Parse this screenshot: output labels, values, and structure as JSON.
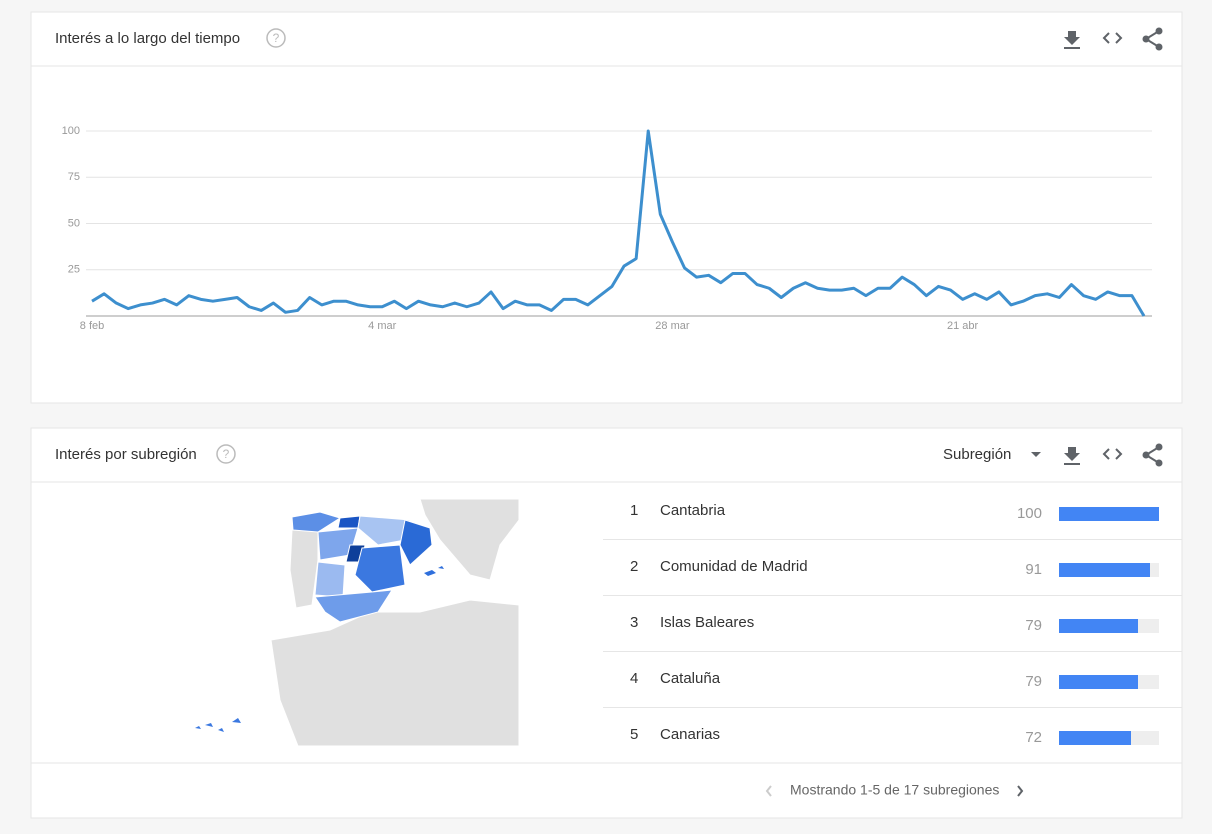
{
  "chart_data": {
    "type": "line",
    "title": "Interés a lo largo del tiempo",
    "categories": [
      "8 feb",
      null,
      null,
      null,
      null,
      null,
      null,
      null,
      null,
      null,
      null,
      null,
      null,
      null,
      null,
      null,
      null,
      null,
      null,
      null,
      null,
      null,
      null,
      null,
      "4 mar",
      null,
      null,
      null,
      null,
      null,
      null,
      null,
      null,
      null,
      null,
      null,
      null,
      null,
      null,
      null,
      null,
      null,
      null,
      null,
      null,
      null,
      null,
      null,
      "28 mar",
      null,
      null,
      null,
      null,
      null,
      null,
      null,
      null,
      null,
      null,
      null,
      null,
      null,
      null,
      null,
      null,
      null,
      null,
      null,
      null,
      null,
      null,
      null,
      "21 abr",
      null,
      null,
      null,
      null,
      null,
      null,
      null,
      null,
      null,
      null,
      null,
      null,
      null,
      null,
      null
    ],
    "series": [
      {
        "color": "#3d8fce",
        "values": [
          8,
          12,
          7,
          4,
          6,
          7,
          9,
          6,
          11,
          9,
          8,
          9,
          10,
          5,
          3,
          7,
          2,
          3,
          10,
          6,
          8,
          8,
          6,
          5,
          5,
          8,
          4,
          8,
          6,
          5,
          7,
          5,
          7,
          13,
          4,
          8,
          6,
          6,
          3,
          9,
          9,
          6,
          11,
          16,
          27,
          31,
          100,
          55,
          40,
          26,
          21,
          22,
          18,
          23,
          23,
          17,
          15,
          10,
          15,
          18,
          15,
          14,
          14,
          15,
          11,
          15,
          15,
          21,
          17,
          11,
          16,
          14,
          9,
          12,
          9,
          13,
          6,
          8,
          11,
          12,
          10,
          17,
          11,
          9,
          13,
          11,
          11,
          0
        ]
      }
    ],
    "ylim": [
      0,
      100
    ],
    "yticks": [
      25,
      50,
      75,
      100
    ],
    "grid": true
  },
  "region_card": {
    "title": "Interés por subregión",
    "dropdown": "Subregión",
    "rows": [
      {
        "rank": 1,
        "name": "Cantabria",
        "value": 100
      },
      {
        "rank": 2,
        "name": "Comunidad de Madrid",
        "value": 91
      },
      {
        "rank": 3,
        "name": "Islas Baleares",
        "value": 79
      },
      {
        "rank": 4,
        "name": "Cataluña",
        "value": 79
      },
      {
        "rank": 5,
        "name": "Canarias",
        "value": 72
      }
    ],
    "footer": "Mostrando 1-5 de 17 subregiones"
  }
}
